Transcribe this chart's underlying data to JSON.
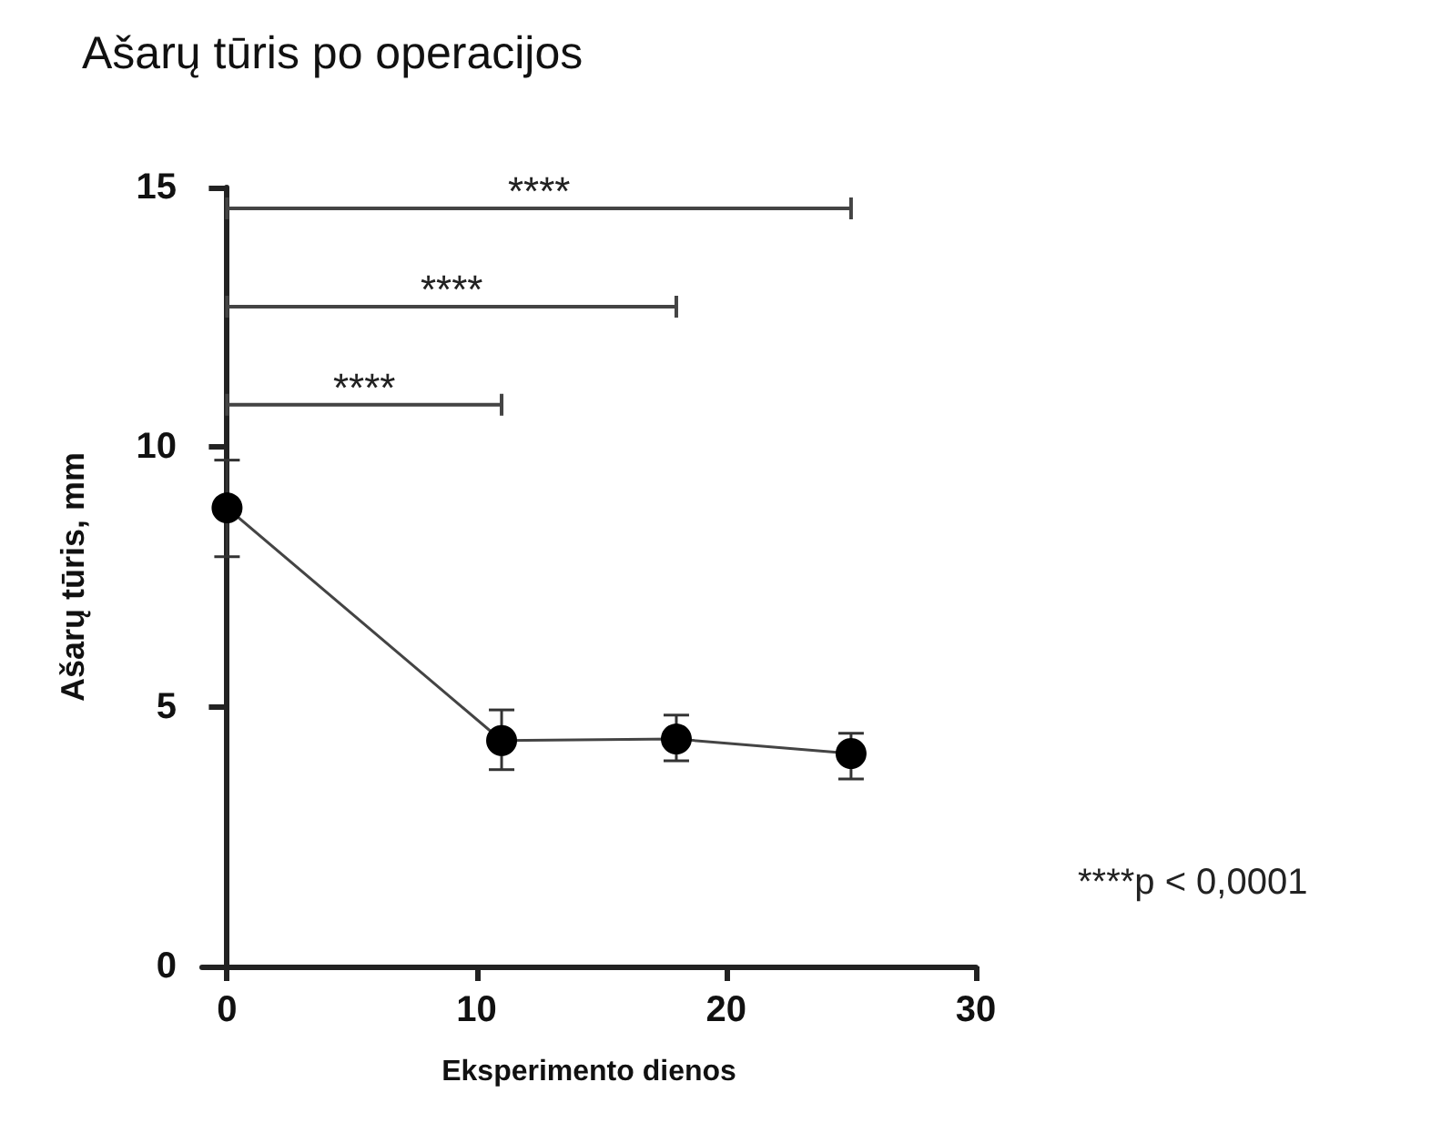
{
  "chart_data": {
    "type": "line",
    "title": "Ašarų tūris po operacijos",
    "xlabel": "Eksperimento dienos",
    "ylabel": "Ašarų tūris, mm",
    "x": [
      0,
      11,
      18,
      25
    ],
    "series": [
      {
        "color": "#000000",
        "values": [
          8.83,
          4.35,
          4.38,
          4.1
        ],
        "errors": [
          [
            7.89,
            9.75
          ],
          [
            3.79,
            4.94
          ],
          [
            3.96,
            4.84
          ],
          [
            3.61,
            4.49
          ]
        ]
      }
    ],
    "xlim": [
      -1,
      30
    ],
    "xticks": [
      0,
      10,
      20,
      30
    ],
    "ylim": [
      0,
      15
    ],
    "yticks": [
      0,
      5,
      10,
      15
    ],
    "annotations": [
      "****",
      "****",
      "****",
      "****p < 0,0001"
    ],
    "marker": "circle",
    "line_style": "solid",
    "grid": false
  }
}
